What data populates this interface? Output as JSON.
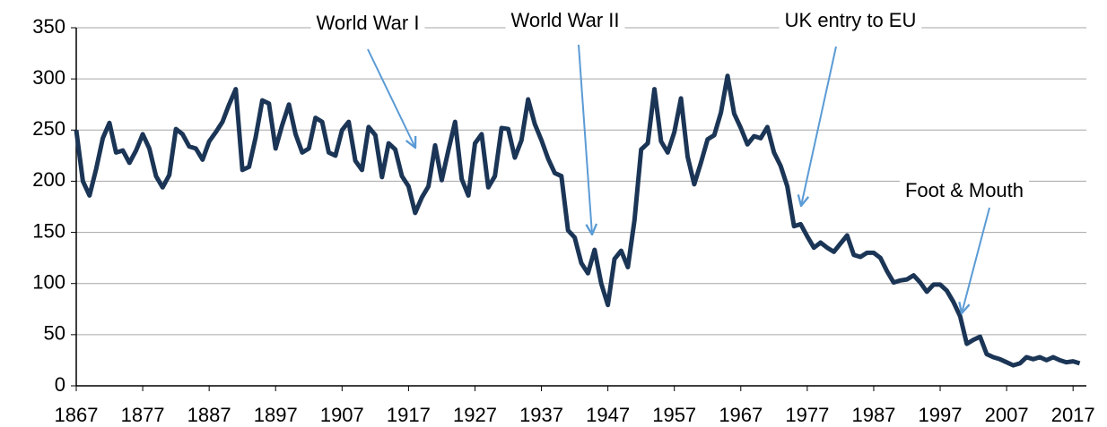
{
  "chart_data": {
    "type": "line",
    "x": [
      1867,
      1868,
      1869,
      1870,
      1871,
      1872,
      1873,
      1874,
      1875,
      1876,
      1877,
      1878,
      1879,
      1880,
      1881,
      1882,
      1883,
      1884,
      1885,
      1886,
      1887,
      1888,
      1889,
      1890,
      1891,
      1892,
      1893,
      1894,
      1895,
      1896,
      1897,
      1898,
      1899,
      1900,
      1901,
      1902,
      1903,
      1904,
      1905,
      1906,
      1907,
      1908,
      1909,
      1910,
      1911,
      1912,
      1913,
      1914,
      1915,
      1916,
      1917,
      1918,
      1919,
      1920,
      1921,
      1922,
      1923,
      1924,
      1925,
      1926,
      1927,
      1928,
      1929,
      1930,
      1931,
      1932,
      1933,
      1934,
      1935,
      1936,
      1937,
      1938,
      1939,
      1940,
      1941,
      1942,
      1943,
      1944,
      1945,
      1946,
      1947,
      1948,
      1949,
      1950,
      1951,
      1952,
      1953,
      1954,
      1955,
      1956,
      1957,
      1958,
      1959,
      1960,
      1961,
      1962,
      1963,
      1964,
      1965,
      1966,
      1967,
      1968,
      1969,
      1970,
      1971,
      1972,
      1973,
      1974,
      1975,
      1976,
      1977,
      1978,
      1979,
      1980,
      1981,
      1982,
      1983,
      1984,
      1985,
      1986,
      1987,
      1988,
      1989,
      1990,
      1991,
      1992,
      1993,
      1994,
      1995,
      1996,
      1997,
      1998,
      1999,
      2000,
      2001,
      2002,
      2003,
      2004,
      2005,
      2006,
      2007,
      2008,
      2009,
      2010,
      2011,
      2012,
      2013,
      2014,
      2015,
      2016,
      2017,
      2018
    ],
    "series": [
      {
        "color": "#1b3556",
        "values": [
          250,
          200,
          186,
          212,
          242,
          257,
          228,
          230,
          218,
          230,
          246,
          232,
          205,
          194,
          206,
          251,
          246,
          234,
          232,
          221,
          239,
          248,
          258,
          275,
          290,
          211,
          214,
          243,
          279,
          276,
          232,
          255,
          275,
          246,
          228,
          232,
          262,
          258,
          228,
          225,
          250,
          258,
          220,
          211,
          253,
          245,
          204,
          237,
          231,
          205,
          195,
          169,
          184,
          195,
          235,
          201,
          230,
          258,
          202,
          186,
          237,
          246,
          194,
          205,
          252,
          251,
          223,
          240,
          280,
          256,
          240,
          222,
          208,
          205,
          152,
          145,
          120,
          110,
          133,
          100,
          79,
          124,
          132,
          116,
          162,
          231,
          237,
          290,
          239,
          228,
          248,
          281,
          224,
          197,
          218,
          241,
          245,
          267,
          303,
          266,
          252,
          236,
          244,
          242,
          253,
          228,
          215,
          195,
          156,
          158,
          146,
          135,
          140,
          135,
          131,
          139,
          147,
          128,
          126,
          130,
          130,
          125,
          112,
          101,
          103,
          104,
          108,
          101,
          92,
          99,
          99,
          93,
          82,
          68,
          41,
          45,
          48,
          31,
          28,
          26,
          23,
          20,
          22,
          28,
          26,
          28,
          25,
          28,
          25,
          23,
          24,
          22
        ]
      }
    ],
    "xlim": [
      1867,
      2019
    ],
    "xticks": [
      1867,
      1877,
      1887,
      1897,
      1907,
      1917,
      1927,
      1937,
      1947,
      1957,
      1967,
      1977,
      1987,
      1997,
      2007,
      2017
    ],
    "ylim": [
      0,
      350
    ],
    "yticks": [
      0,
      50,
      100,
      150,
      200,
      250,
      300,
      350
    ],
    "grid": true,
    "annotations": [
      "World War I",
      "World War II",
      "UK entry to EU",
      "Foot & Mouth"
    ]
  }
}
